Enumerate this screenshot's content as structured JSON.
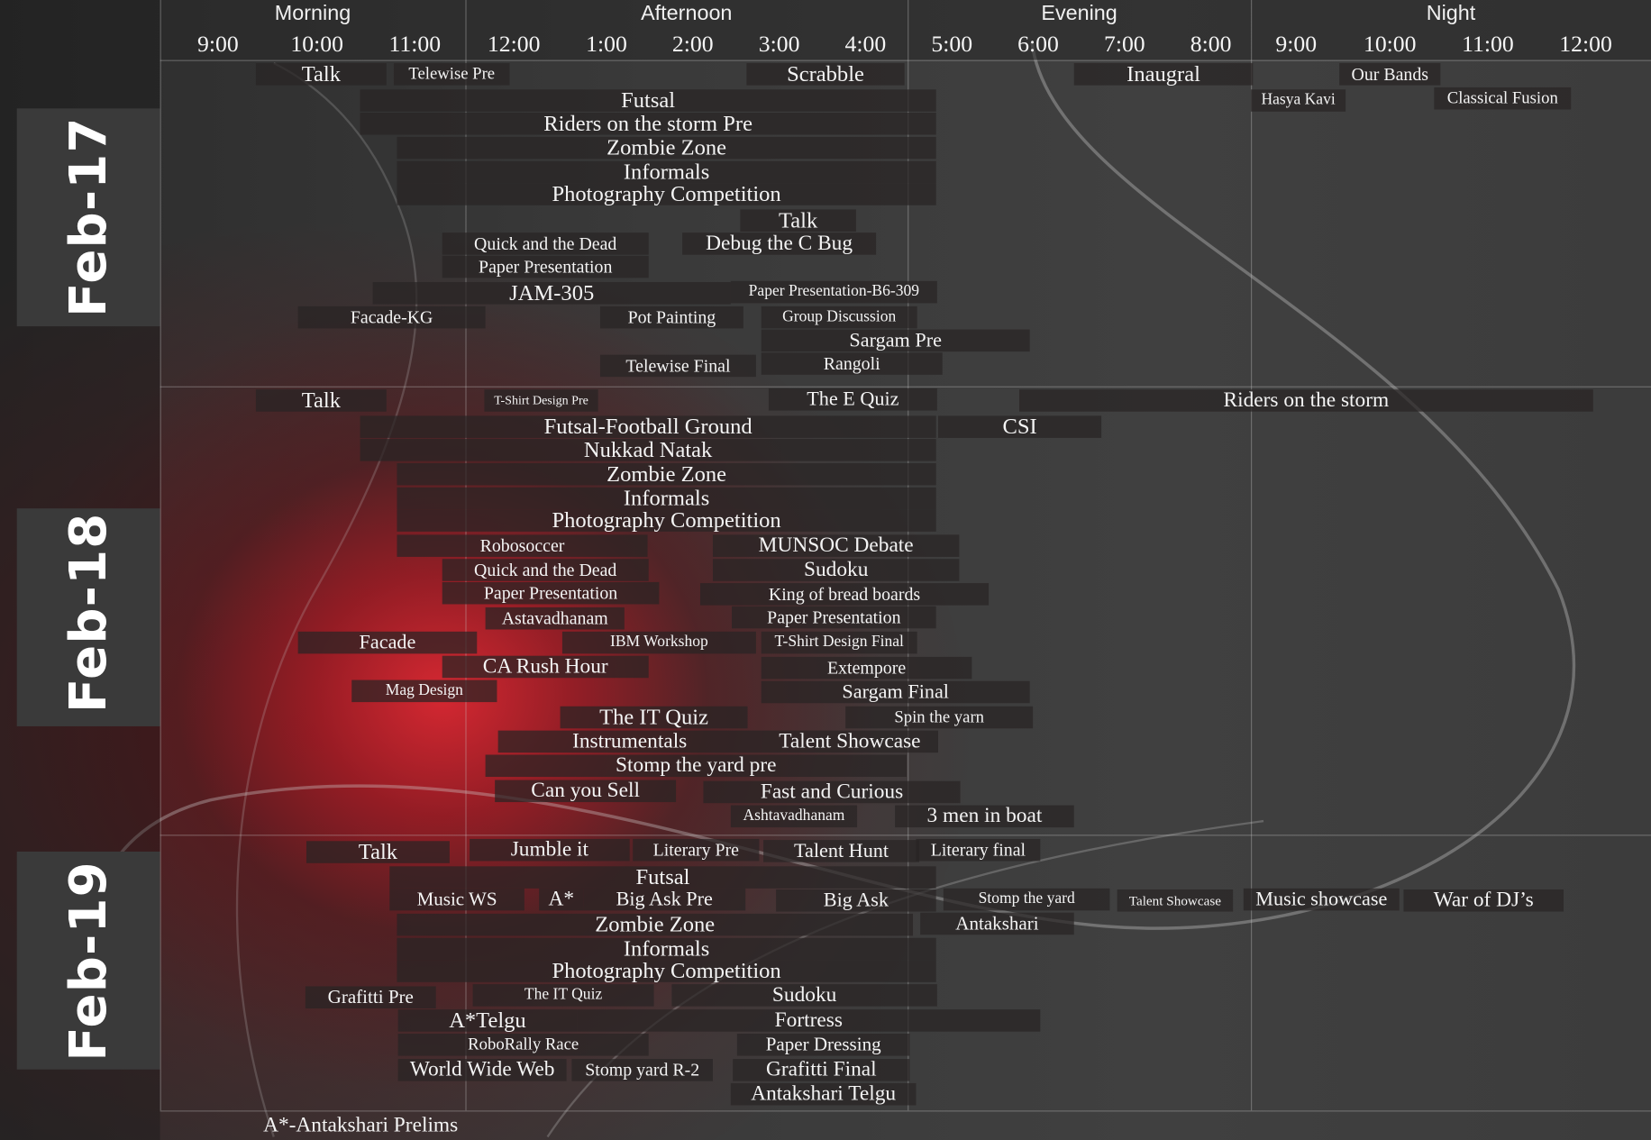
{
  "periods": [
    "Morning",
    "Afternoon",
    "Evening",
    "Night"
  ],
  "times": [
    "9:00",
    "10:00",
    "11:00",
    "12:00",
    "1:00",
    "2:00",
    "3:00",
    "4:00",
    "5:00",
    "6:00",
    "7:00",
    "8:00",
    "9:00",
    "10:00",
    "11:00",
    "12:00"
  ],
  "days": [
    "Feb-17",
    "Feb-18",
    "Feb-19"
  ],
  "events": {
    "d17": [
      "Talk",
      "Telewise Pre",
      "Scrabble",
      "Inaugral",
      "Our Bands",
      "Hasya Kavi",
      "Classical Fusion",
      "Futsal",
      "Riders on the storm Pre",
      "Zombie Zone",
      "Informals",
      "Photography Competition",
      "Talk",
      "Quick and the Dead",
      "Debug the C Bug",
      "Paper Presentation",
      "JAM-305",
      "Paper Presentation-B6-309",
      "Facade-KG",
      "Pot Painting",
      "Group Discussion",
      "Sargam Pre",
      "Telewise Final",
      "Rangoli"
    ],
    "d18": [
      "Talk",
      "T-Shirt Design Pre",
      "The E Quiz",
      "Riders on the storm",
      "Futsal-Football Ground",
      "CSI",
      "Nukkad Natak",
      "Zombie Zone",
      "Informals",
      "Photography Competition",
      "Robosoccer",
      "MUNSOC Debate",
      "Quick and the Dead",
      "Sudoku",
      "Paper Presentation",
      "King of bread boards",
      "Astavadhanam",
      "Paper Presentation",
      "Facade",
      "IBM Workshop",
      "T-Shirt Design Final",
      "CA Rush Hour",
      "Extempore",
      "Mag Design",
      "Sargam Final",
      "The IT Quiz",
      "Spin the yarn",
      "Instrumentals",
      "Talent Showcase",
      "Stomp the yard pre",
      "Can you Sell",
      "Fast and Curious",
      "Ashtavadhanam",
      "3 men in boat"
    ],
    "d19": [
      "Talk",
      "Jumble it",
      "Literary Pre",
      "Talent Hunt",
      "Literary final",
      "Futsal",
      "Music WS",
      "A*",
      "Big Ask Pre",
      "Big Ask",
      "Stomp the yard",
      "Talent Showcase",
      "Music showcase",
      "War of DJ’s",
      "Zombie Zone",
      "Antakshari",
      "Informals",
      "Photography Competition",
      "Grafitti Pre",
      "The IT Quiz",
      "Sudoku",
      "A*Telgu",
      "Fortress",
      "RoboRally Race",
      "Paper Dressing",
      "World Wide Web",
      "Stomp yard R-2",
      "Grafitti Final",
      "Antakshari Telgu"
    ]
  },
  "footnote": "A*-Antakshari Prelims"
}
